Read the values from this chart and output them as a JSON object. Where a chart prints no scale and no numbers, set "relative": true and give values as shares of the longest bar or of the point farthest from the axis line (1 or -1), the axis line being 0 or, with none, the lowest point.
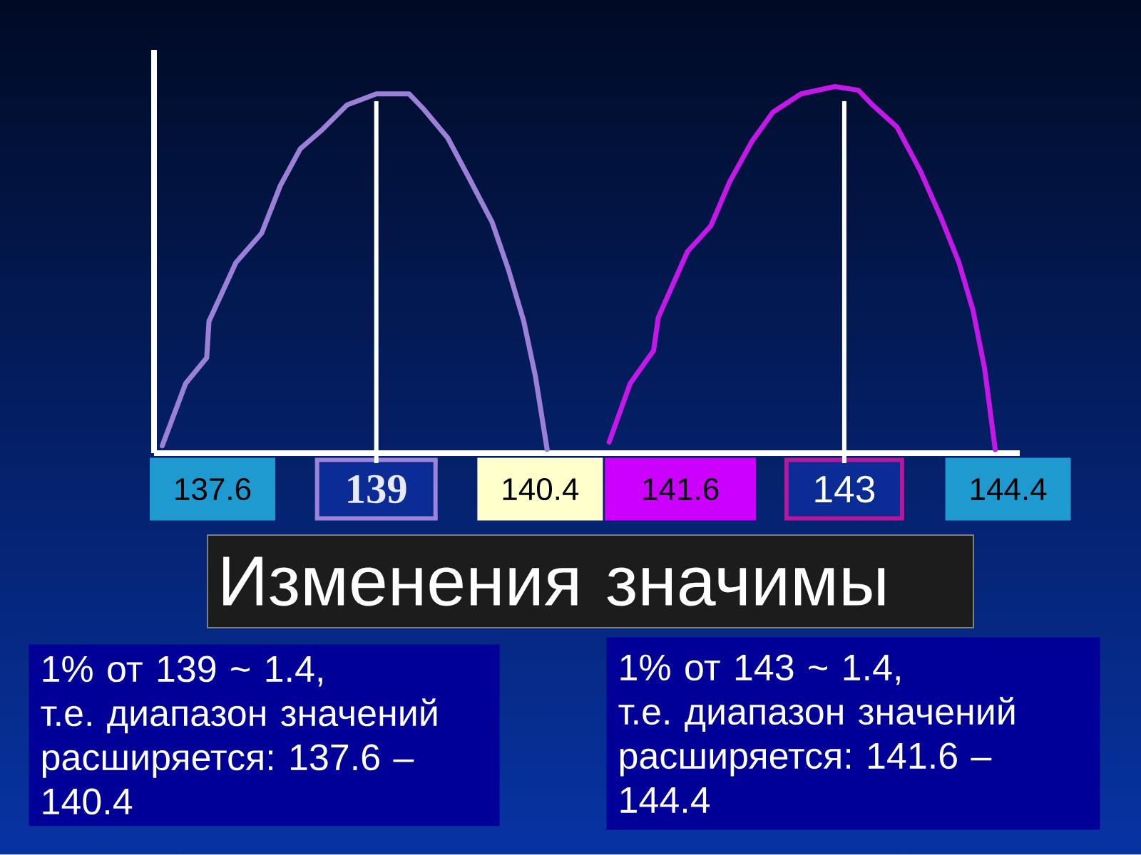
{
  "chart_data": {
    "type": "line",
    "relative": true,
    "xlim": [
      137.1,
      144.5
    ],
    "xticks": [
      137.6,
      139,
      140.4,
      141.6,
      143,
      144.4
    ],
    "series": [
      {
        "color": "#9b80d8",
        "x": [
          137.17,
          137.37,
          137.55,
          137.57,
          137.8,
          138.02,
          138.18,
          138.35,
          138.53,
          138.75,
          139.0,
          139.28,
          139.4,
          139.61,
          139.81,
          139.99,
          140.13,
          140.26,
          140.36,
          140.46
        ],
        "values": [
          0.02,
          0.19,
          0.26,
          0.36,
          0.52,
          0.6,
          0.73,
          0.83,
          0.88,
          0.95,
          0.98,
          0.98,
          0.94,
          0.86,
          0.74,
          0.63,
          0.5,
          0.36,
          0.21,
          0.01
        ]
      },
      {
        "color": "#c418e8",
        "x": [
          140.99,
          141.17,
          141.37,
          141.41,
          141.66,
          141.86,
          142.02,
          142.21,
          142.39,
          142.63,
          142.92,
          143.12,
          143.24,
          143.45,
          143.65,
          143.83,
          143.98,
          144.1,
          144.2,
          144.29
        ],
        "values": [
          0.03,
          0.19,
          0.28,
          0.37,
          0.55,
          0.62,
          0.74,
          0.85,
          0.93,
          0.98,
          1.0,
          0.99,
          0.95,
          0.89,
          0.77,
          0.64,
          0.52,
          0.39,
          0.23,
          0.01
        ]
      }
    ],
    "ref_lines": [
      {
        "axis": "x",
        "value": 139,
        "color": "#ffffff"
      },
      {
        "axis": "x",
        "value": 143,
        "color": "#ffffff"
      }
    ],
    "annotations": [
      "Изменения  значимы",
      "1% от 139 ~ 1.4,\nт.е. диапазон значений расширяется: 137.6 – 140.4",
      "1% от 143 ~ 1.4,\nт.е. диапазон значений расширяется: 141.6 – 144.4"
    ]
  }
}
